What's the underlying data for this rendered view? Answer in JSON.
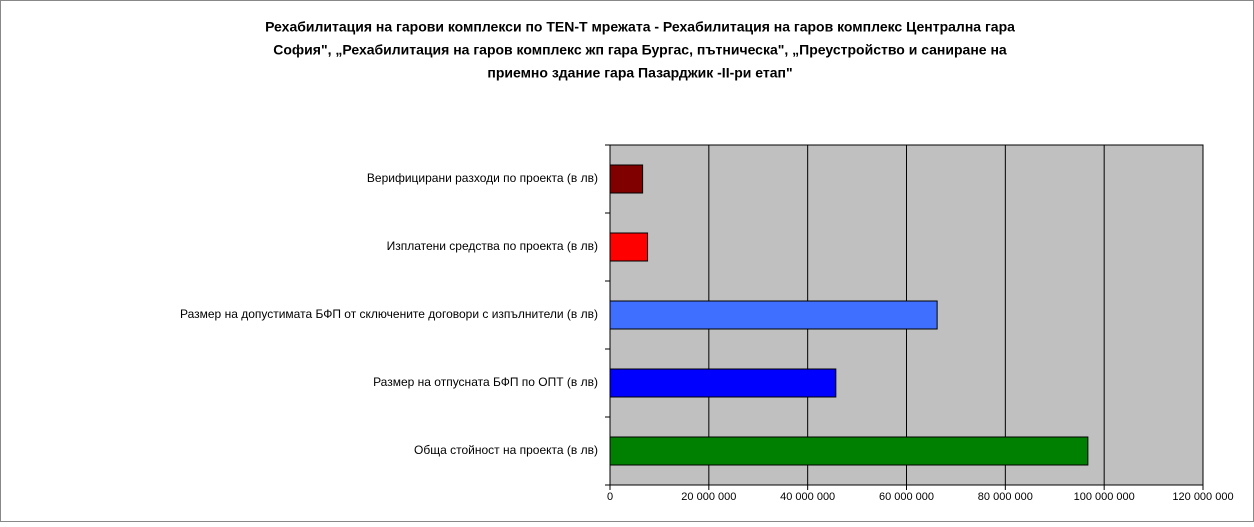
{
  "chart_data": {
    "type": "barh",
    "title": [
      "Рехабилитация на гарови комплекси по TEN-T мрежата - Рехабилитация на гаров комплекс Централна гара",
      "София\", „Рехабилитация на гаров комплекс жп гара Бургас, пътническа\", „Преустройство и саниране на",
      "приемно здание гара Пазарджик -II-ри етап\""
    ],
    "categories": [
      "Верифицирани разходи по проекта (в лв)",
      "Изплатени средства по проекта (в лв)",
      "Размер на допустимата  БФП от сключените договори с изпълнители (в лв)",
      "Размер на отпусната БФП по ОПТ (в лв)",
      "Обща стойност на проекта (в лв)"
    ],
    "values": [
      6600000,
      7600000,
      66200000,
      45700000,
      96700000
    ],
    "colors": [
      "#800000",
      "#ff0000",
      "#3f6fff",
      "#0000ff",
      "#008000"
    ],
    "xlim": [
      0,
      120000000
    ],
    "xticks": [
      0,
      {
        "value": 20000000,
        "label": "20 000 000"
      },
      {
        "value": 40000000,
        "label": "40 000 000"
      },
      {
        "value": 60000000,
        "label": "60 000 000"
      },
      {
        "value": 80000000,
        "label": "80 000 000"
      },
      {
        "value": 100000000,
        "label": "100 000 000"
      },
      {
        "value": 120000000,
        "label": "120 000 000"
      }
    ],
    "grid": true
  }
}
